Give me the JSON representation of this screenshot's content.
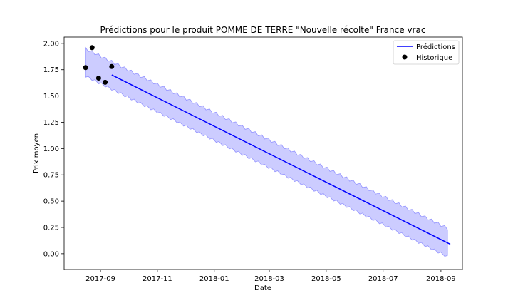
{
  "chart_data": {
    "type": "line",
    "title": "Prédictions pour le produit POMME DE TERRE \"Nouvelle récolte\" France vrac",
    "xlabel": "Date",
    "ylabel": "Prix moyen",
    "xlim": [
      "2017-07-24",
      "2018-09-24"
    ],
    "ylim": [
      -0.15,
      2.06
    ],
    "x_ticks": [
      "2017-09",
      "2017-11",
      "2018-01",
      "2018-03",
      "2018-05",
      "2018-07",
      "2018-09"
    ],
    "y_ticks": [
      "0.00",
      "0.25",
      "0.50",
      "0.75",
      "1.00",
      "1.25",
      "1.50",
      "1.75",
      "2.00"
    ],
    "grid": false,
    "legend": {
      "position": "top-right",
      "entries": [
        "Prédictions",
        "Historique"
      ]
    },
    "series": [
      {
        "name": "Prédictions",
        "kind": "line",
        "color": "#0000ff",
        "points": [
          {
            "x": "2017-09-13",
            "y": 1.7
          },
          {
            "x": "2018-09-11",
            "y": 0.09
          }
        ]
      },
      {
        "name": "Historique",
        "kind": "scatter",
        "color": "#000000",
        "points": [
          {
            "x": "2017-08-16",
            "y": 1.77
          },
          {
            "x": "2017-08-23",
            "y": 1.96
          },
          {
            "x": "2017-08-30",
            "y": 1.67
          },
          {
            "x": "2017-09-06",
            "y": 1.63
          },
          {
            "x": "2017-09-13",
            "y": 1.78
          }
        ]
      }
    ],
    "interval": {
      "color": "#0000ff",
      "upper": [
        {
          "x": "2017-08-16",
          "y": 1.95
        },
        {
          "x": "2018-09-11",
          "y": 0.23
        }
      ],
      "lower": [
        {
          "x": "2017-08-16",
          "y": 1.69
        },
        {
          "x": "2018-09-11",
          "y": -0.04
        }
      ]
    }
  }
}
